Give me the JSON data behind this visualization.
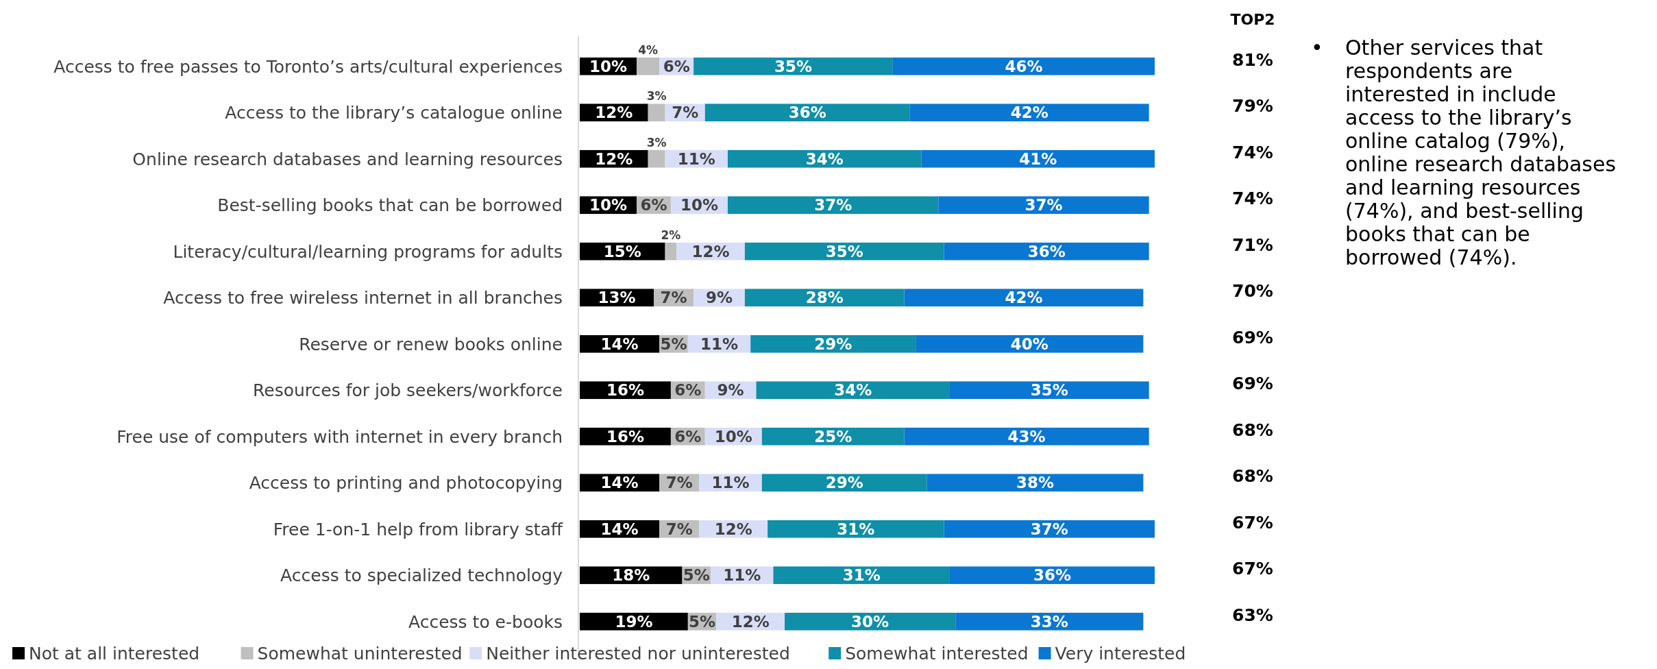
{
  "chart_data": {
    "type": "bar",
    "orientation": "horizontal",
    "stacked": true,
    "xlim": [
      0,
      101
    ],
    "tick_labels": "y",
    "legend": "bottom left",
    "categories": [
      "Access to free passes to Toronto’s arts/cultural experiences",
      "Access to the library’s catalogue online",
      "Online research databases and learning resources",
      "Best-selling books that can be borrowed",
      "Literacy/cultural/learning programs for adults",
      "Access to free wireless internet in all branches",
      "Reserve or renew books online",
      "Resources for job seekers/workforce",
      "Free use of computers with internet in every branch",
      "Access to printing and photocopying",
      "Free 1-on-1 help from library staff",
      "Access to specialized technology ",
      "Access to e-books"
    ],
    "series": [
      {
        "name": "Not at all interested",
        "color": "#000000",
        "values": [
          10,
          12,
          12,
          10,
          15,
          13,
          14,
          16,
          16,
          14,
          14,
          18,
          19
        ],
        "value_labels": [
          "10%",
          "12%",
          "12%",
          "10%",
          "15%",
          "13%",
          "14%",
          "16%",
          "16%",
          "14%",
          "14%",
          "18%",
          "19%"
        ]
      },
      {
        "name": "Somewhat uninterested",
        "color": "#bfbfbf",
        "values": [
          4,
          3,
          3,
          6,
          2,
          7,
          5,
          6,
          6,
          7,
          7,
          5,
          5
        ],
        "value_labels": [
          "4%",
          "3%",
          "3%",
          "6%",
          "2%",
          "7%",
          "5%",
          "6%",
          "6%",
          "7%",
          "7%",
          "5%",
          "5%"
        ]
      },
      {
        "name": "Neither interested nor uninterested",
        "color": "#d9def8",
        "values": [
          6,
          7,
          11,
          10,
          12,
          9,
          11,
          9,
          10,
          11,
          12,
          11,
          12
        ],
        "value_labels": [
          "6%",
          "7%",
          "11%",
          "10%",
          "12%",
          "9%",
          "11%",
          "9%",
          "10%",
          "11%",
          "12%",
          "11%",
          "12%"
        ]
      },
      {
        "name": "Somewhat interested",
        "color": "#0f8fa8",
        "values": [
          35,
          36,
          34,
          37,
          35,
          28,
          29,
          34,
          25,
          29,
          31,
          31,
          30
        ],
        "value_labels": [
          "35%",
          "36%",
          "34%",
          "37%",
          "35%",
          "28%",
          "29%",
          "34%",
          "25%",
          "29%",
          "31%",
          "31%",
          "30%"
        ]
      },
      {
        "name": "Very interested",
        "color": "#0a78d2",
        "values": [
          46,
          42,
          41,
          37,
          36,
          42,
          40,
          35,
          43,
          38,
          37,
          36,
          33
        ],
        "value_labels": [
          "46%",
          "42%",
          "41%",
          "37%",
          "36%",
          "42%",
          "40%",
          "35%",
          "43%",
          "38%",
          "37%",
          "36%",
          "33%"
        ]
      }
    ],
    "annotations": [
      "TOP2",
      "81%",
      "79%",
      "74%",
      "74%",
      "71%",
      "70%",
      "69%",
      "69%",
      "68%",
      "68%",
      "67%",
      "67%",
      "63%",
      "• Other services that respondents are interested in include access to the library’s online catalog (79%), online research databases and learning resources (74%), and best-selling books that can be borrowed (74%)."
    ]
  }
}
